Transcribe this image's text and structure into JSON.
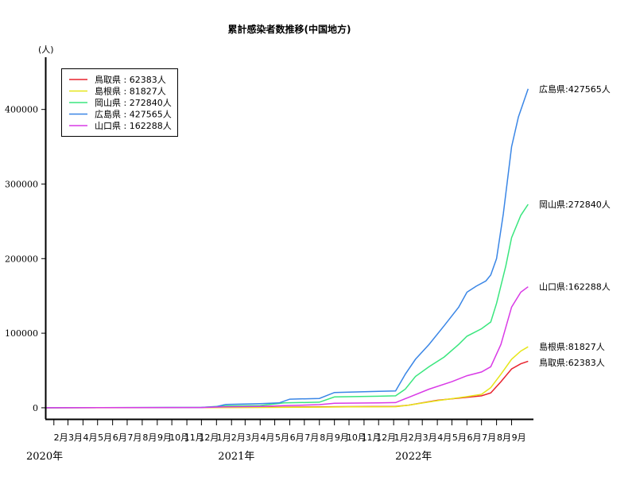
{
  "chart_data": {
    "type": "line",
    "title": "累計感染者数推移(中国地方)",
    "ylabel": "(人)",
    "ylim": [
      -15000,
      470000
    ],
    "yticks": [
      0,
      100000,
      200000,
      300000,
      400000
    ],
    "ytick_labels": [
      "0",
      "100000",
      "200000",
      "300000",
      "400000"
    ],
    "xlim": [
      "2020-01-16",
      "2022-10-16"
    ],
    "month_labels": [
      "2月",
      "3月",
      "4月",
      "5月",
      "6月",
      "7月",
      "8月",
      "9月",
      "10月",
      "11月",
      "12月",
      "1月",
      "2月",
      "3月",
      "4月",
      "5月",
      "6月",
      "7月",
      "8月",
      "9月",
      "10月",
      "11月",
      "12月",
      "1月",
      "2月",
      "3月",
      "4月",
      "5月",
      "6月",
      "7月",
      "8月",
      "9月"
    ],
    "year_labels": [
      {
        "text": "2020年",
        "date": "2020-02-01"
      },
      {
        "text": "2021年",
        "date": "2021-01-01"
      },
      {
        "text": "2022年",
        "date": "2022-01-01"
      }
    ],
    "legend": {
      "position": "top-left"
    },
    "series": [
      {
        "name": "鳥取県",
        "legend_label": "鳥取県 : 62383人",
        "end_label": "鳥取県:62383人",
        "color": "#e8222d",
        "x": [
          "2020-01-16",
          "2020-12-01",
          "2021-04-15",
          "2021-08-01",
          "2021-10-01",
          "2022-01-05",
          "2022-02-01",
          "2022-04-01",
          "2022-06-01",
          "2022-07-01",
          "2022-07-20",
          "2022-08-10",
          "2022-09-01",
          "2022-09-20",
          "2022-10-05"
        ],
        "y": [
          0,
          300,
          800,
          1200,
          1500,
          1700,
          3500,
          10000,
          14000,
          16000,
          20000,
          35000,
          52000,
          59000,
          62383
        ]
      },
      {
        "name": "島根県",
        "legend_label": "島根県 : 81827人",
        "end_label": "島根県:81827人",
        "color": "#e6e619",
        "x": [
          "2020-01-16",
          "2020-12-01",
          "2021-04-15",
          "2021-08-01",
          "2021-10-01",
          "2022-01-05",
          "2022-02-01",
          "2022-04-01",
          "2022-06-01",
          "2022-07-01",
          "2022-07-20",
          "2022-08-10",
          "2022-09-01",
          "2022-09-20",
          "2022-10-05"
        ],
        "y": [
          0,
          200,
          500,
          900,
          1200,
          1400,
          3500,
          9500,
          15000,
          18000,
          27000,
          45000,
          65000,
          76000,
          81827
        ]
      },
      {
        "name": "岡山県",
        "legend_label": "岡山県 : 272840人",
        "end_label": "岡山県:272840人",
        "color": "#3ae67e",
        "x": [
          "2020-01-16",
          "2020-12-01",
          "2021-01-15",
          "2021-04-01",
          "2021-05-20",
          "2021-08-01",
          "2021-09-01",
          "2021-12-01",
          "2022-01-05",
          "2022-01-25",
          "2022-02-15",
          "2022-03-15",
          "2022-04-15",
          "2022-05-15",
          "2022-06-01",
          "2022-07-01",
          "2022-07-20",
          "2022-08-01",
          "2022-08-20",
          "2022-09-01",
          "2022-09-20",
          "2022-10-05"
        ],
        "y": [
          0,
          400,
          2500,
          3000,
          6500,
          7500,
          14500,
          15500,
          16000,
          25000,
          42000,
          55000,
          68000,
          85000,
          96000,
          106000,
          115000,
          140000,
          190000,
          228000,
          258000,
          272840
        ]
      },
      {
        "name": "広島県",
        "legend_label": "広島県 : 427565人",
        "end_label": "広島県:427565人",
        "color": "#3a86e6",
        "x": [
          "2020-01-16",
          "2020-12-01",
          "2021-01-01",
          "2021-01-20",
          "2021-04-01",
          "2021-05-10",
          "2021-06-01",
          "2021-08-01",
          "2021-09-01",
          "2021-12-01",
          "2022-01-05",
          "2022-01-25",
          "2022-02-15",
          "2022-03-15",
          "2022-04-15",
          "2022-05-15",
          "2022-06-01",
          "2022-06-20",
          "2022-07-10",
          "2022-07-20",
          "2022-08-01",
          "2022-08-15",
          "2022-09-01",
          "2022-09-15",
          "2022-10-05"
        ],
        "y": [
          0,
          600,
          1500,
          4500,
          5500,
          6500,
          11500,
          12500,
          20500,
          22000,
          22500,
          45000,
          65000,
          85000,
          110000,
          135000,
          155000,
          163000,
          170000,
          178000,
          200000,
          260000,
          350000,
          390000,
          427565
        ]
      },
      {
        "name": "山口県",
        "legend_label": "山口県 : 162288人",
        "end_label": "山口県:162288人",
        "color": "#d93ae6",
        "x": [
          "2020-01-16",
          "2020-12-01",
          "2021-01-15",
          "2021-04-01",
          "2021-05-20",
          "2021-08-01",
          "2021-09-01",
          "2021-12-01",
          "2022-01-05",
          "2022-02-01",
          "2022-03-15",
          "2022-05-01",
          "2022-06-01",
          "2022-07-01",
          "2022-07-20",
          "2022-08-10",
          "2022-09-01",
          "2022-09-20",
          "2022-10-05"
        ],
        "y": [
          0,
          300,
          1200,
          1800,
          2800,
          4200,
          6000,
          6500,
          7000,
          14000,
          25000,
          35000,
          43000,
          48000,
          55000,
          85000,
          135000,
          155000,
          162288
        ]
      }
    ]
  }
}
